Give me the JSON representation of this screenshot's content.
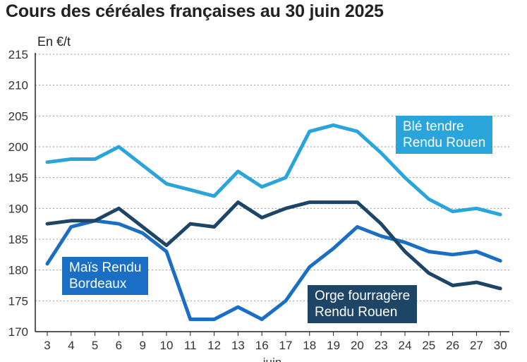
{
  "chart_data": {
    "type": "line",
    "title": "Cours des céréales françaises au 30 juin 2025",
    "ylabel": "En €/t",
    "xlabel": "juin",
    "ylim": [
      170,
      215
    ],
    "yticks": [
      170,
      175,
      180,
      185,
      190,
      195,
      200,
      205,
      210,
      215
    ],
    "grid": true,
    "categories": [
      "3",
      "4",
      "5",
      "6",
      "9",
      "10",
      "11",
      "12",
      "13",
      "16",
      "17",
      "18",
      "19",
      "20",
      "23",
      "24",
      "25",
      "26",
      "27",
      "30"
    ],
    "series": [
      {
        "name": "Blé tendre Rendu Rouen",
        "color": "#2aa5dc",
        "label_lines": [
          "Blé tendre",
          "Rendu Rouen"
        ],
        "values": [
          197.5,
          198,
          198,
          200,
          197,
          194,
          193,
          192,
          196,
          193.5,
          195,
          202.5,
          203.5,
          202.5,
          199,
          195,
          191.5,
          189.5,
          190,
          189
        ]
      },
      {
        "name": "Maïs Rendu Bordeaux",
        "color": "#1a6fc4",
        "label_lines": [
          "Maïs Rendu",
          "Bordeaux"
        ],
        "values": [
          181,
          187,
          188,
          187.5,
          186,
          183,
          172,
          172,
          174,
          172,
          175,
          180.5,
          183.5,
          187,
          185.5,
          184.5,
          183,
          182.5,
          183,
          181.5
        ]
      },
      {
        "name": "Orge fourragère Rendu Rouen",
        "color": "#1e4566",
        "label_lines": [
          "Orge fourragère",
          "Rendu Rouen"
        ],
        "values": [
          187.5,
          188,
          188,
          190,
          187,
          184,
          187.5,
          187,
          191,
          188.5,
          190,
          191,
          191,
          191,
          187.5,
          183,
          179.5,
          177.5,
          178,
          177
        ]
      }
    ]
  }
}
